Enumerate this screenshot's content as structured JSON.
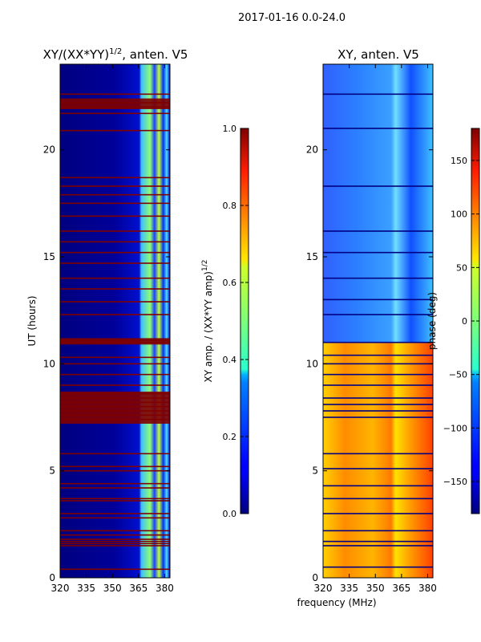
{
  "suptitle": "2017-01-16 0.0-24.0",
  "chart_data": [
    {
      "type": "heatmap",
      "title_main": "XY/(XX*YY)",
      "title_sup": "1/2",
      "title_tail": ", anten. V5",
      "xlabel": "",
      "ylabel": "UT (hours)",
      "xlim": [
        320,
        383
      ],
      "ylim": [
        0,
        24
      ],
      "xticks": [
        320,
        335,
        350,
        365,
        380
      ],
      "yticks": [
        0,
        5,
        10,
        15,
        20
      ],
      "colorbar": {
        "label_main": "XY amp. / (XX*YY amp)",
        "label_sup": "1/2",
        "range": [
          0.0,
          1.0
        ],
        "ticks": [
          "0.0",
          "0.2",
          "0.4",
          "0.6",
          "0.8",
          "1.0"
        ],
        "colormap": "jet"
      },
      "colors": {
        "background": "#00007f",
        "flagged": "#800000",
        "signal": "#3fbfff"
      },
      "flagged_rows_hours": [
        0.4,
        1.5,
        1.6,
        1.7,
        1.8,
        2.0,
        2.2,
        2.8,
        3.0,
        3.6,
        3.7,
        4.2,
        4.4,
        5.0,
        5.2,
        5.8,
        7.4,
        7.6,
        7.8,
        8.0,
        8.2,
        8.4,
        8.6,
        9.0,
        9.5,
        10.0,
        10.3,
        11.0,
        11.1,
        12.3,
        12.9,
        13.5,
        14.0,
        14.7,
        15.2,
        15.7,
        16.2,
        16.9,
        17.5,
        17.9,
        18.3,
        18.7,
        20.9,
        21.7,
        22.0,
        22.2,
        22.6
      ],
      "flagged_bands_hours": [
        [
          8.7,
          7.2
        ],
        [
          11.2,
          10.9
        ],
        [
          22.4,
          21.9
        ]
      ],
      "signal_band_mhz": [
        360,
        383
      ]
    },
    {
      "type": "heatmap",
      "title": "XY, anten. V5",
      "xlabel": "frequency (MHz)",
      "ylabel": "",
      "xlim": [
        320,
        383
      ],
      "ylim": [
        0,
        24
      ],
      "xticks": [
        320,
        335,
        350,
        365,
        380
      ],
      "yticks": [
        0,
        5,
        10,
        15,
        20
      ],
      "colorbar": {
        "label": "phase (deg)",
        "range": [
          -180,
          180
        ],
        "ticks": [
          "−150",
          "−100",
          "−50",
          "0",
          "50",
          "100",
          "150"
        ],
        "tick_values": [
          -150,
          -100,
          -50,
          0,
          50,
          100,
          150
        ],
        "colormap": "jet"
      },
      "colors": {
        "upper": "#2b7fff",
        "lower": "#ffb000",
        "flagged": "#000080"
      },
      "phase_regimes": [
        {
          "from_hours": 0,
          "to_hours": 11,
          "phase_deg": 100
        },
        {
          "from_hours": 11,
          "to_hours": 24,
          "phase_deg": -110
        }
      ],
      "flagged_rows_hours": [
        0.5,
        1.5,
        1.7,
        2.2,
        3.0,
        3.7,
        4.3,
        5.1,
        5.8,
        7.5,
        7.8,
        8.1,
        8.4,
        9.0,
        9.5,
        10.0,
        10.4,
        11.0,
        12.3,
        13.0,
        14.0,
        15.2,
        16.2,
        18.3,
        21.0,
        22.6
      ]
    }
  ]
}
